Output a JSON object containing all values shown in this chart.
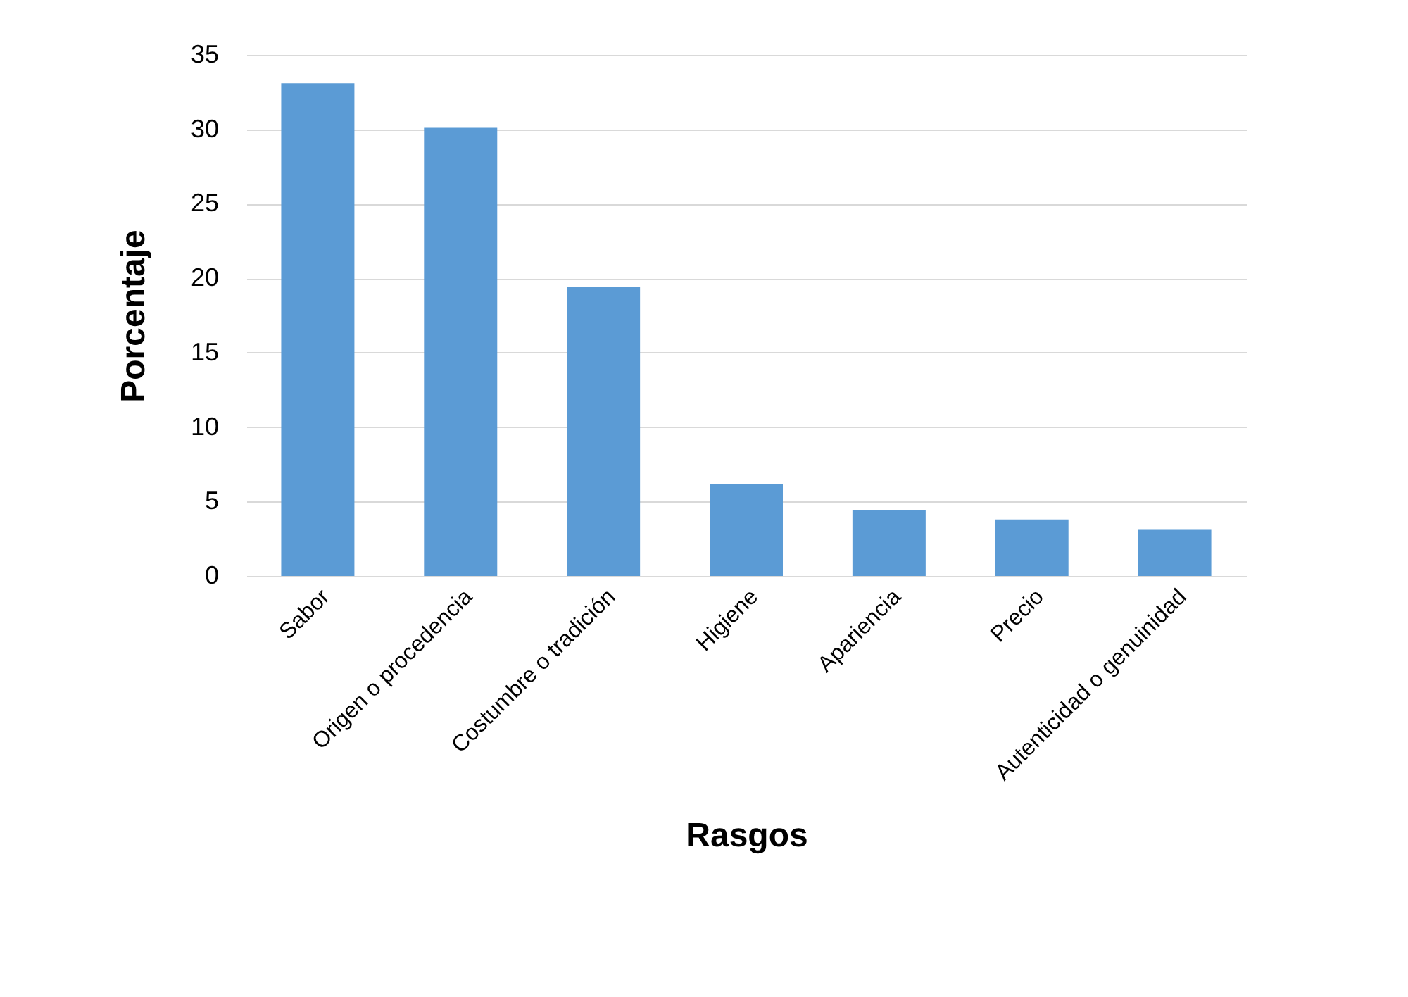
{
  "chart_data": {
    "type": "bar",
    "xlabel": "Rasgos",
    "ylabel": "Porcentaje",
    "categories": [
      "Sabor",
      "Origen o procedencia",
      "Costumbre o tradición",
      "Higiene",
      "Apariencia",
      "Precio",
      "Autenticidad o genuinidad"
    ],
    "values": [
      33.1,
      30.1,
      19.4,
      6.2,
      4.4,
      3.8,
      3.1
    ],
    "color": "#5b9bd5",
    "ylim": [
      0,
      35
    ],
    "yticks": [
      0,
      5,
      10,
      15,
      20,
      25,
      30,
      35
    ],
    "grid": "y"
  }
}
